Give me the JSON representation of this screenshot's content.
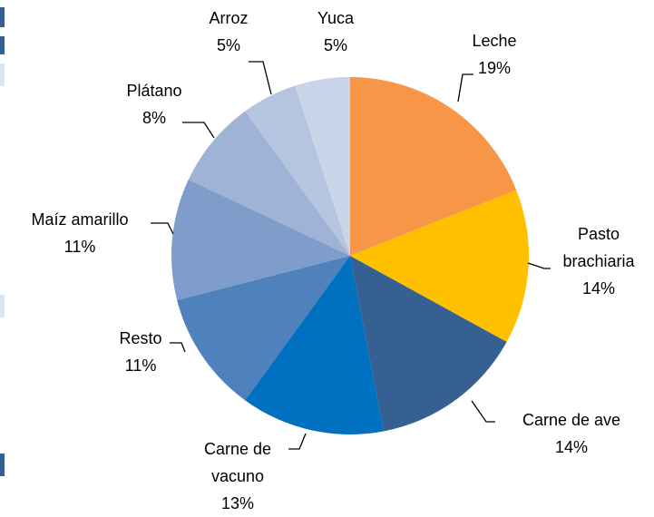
{
  "chart_data": {
    "type": "pie",
    "categories": [
      "Leche",
      "Pasto brachiaria",
      "Carne de ave",
      "Carne de vacuno",
      "Resto",
      "Maíz amarillo",
      "Plátano",
      "Arroz",
      "Yuca"
    ],
    "values": [
      19,
      14,
      14,
      13,
      11,
      11,
      8,
      5,
      5
    ],
    "value_labels": [
      "19%",
      "14%",
      "14%",
      "13%",
      "11%",
      "11%",
      "8%",
      "5%",
      "5%"
    ],
    "colors": [
      "#f79646",
      "#ffc000",
      "#376092",
      "#0070c0",
      "#4f81bd",
      "#7f9dca",
      "#9fb3d6",
      "#b5c4df",
      "#c9d4e8"
    ]
  }
}
